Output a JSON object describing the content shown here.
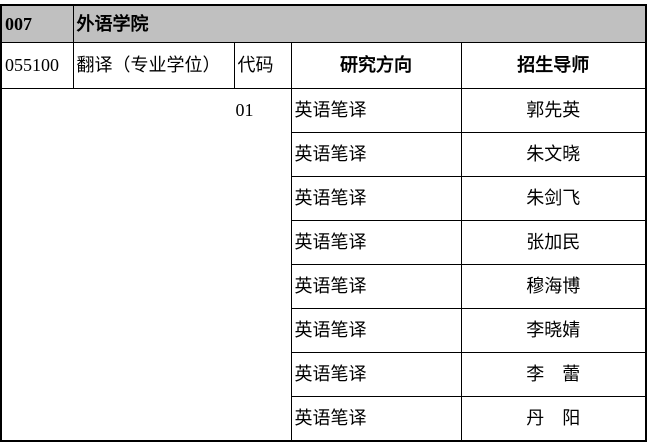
{
  "colors": {
    "header_bg": "#c0c0c0",
    "border": "#000000",
    "text": "#000000",
    "page_bg": "#ffffff"
  },
  "table": {
    "dept_code": "007",
    "dept_name": "外语学院",
    "program_code": "055100",
    "program_name": "翻译（专业学位）",
    "columns": {
      "code": "代码",
      "direction": "研究方向",
      "supervisor": "招生导师"
    },
    "group_code": "01",
    "rows": [
      {
        "direction": "英语笔译",
        "supervisor": "郭先英"
      },
      {
        "direction": "英语笔译",
        "supervisor": "朱文晓"
      },
      {
        "direction": "英语笔译",
        "supervisor": "朱剑飞"
      },
      {
        "direction": "英语笔译",
        "supervisor": "张加民"
      },
      {
        "direction": "英语笔译",
        "supervisor": "穆海博"
      },
      {
        "direction": "英语笔译",
        "supervisor": "李晓婧"
      },
      {
        "direction": "英语笔译",
        "supervisor": "李　蕾"
      },
      {
        "direction": "英语笔译",
        "supervisor": "丹　阳"
      }
    ]
  }
}
